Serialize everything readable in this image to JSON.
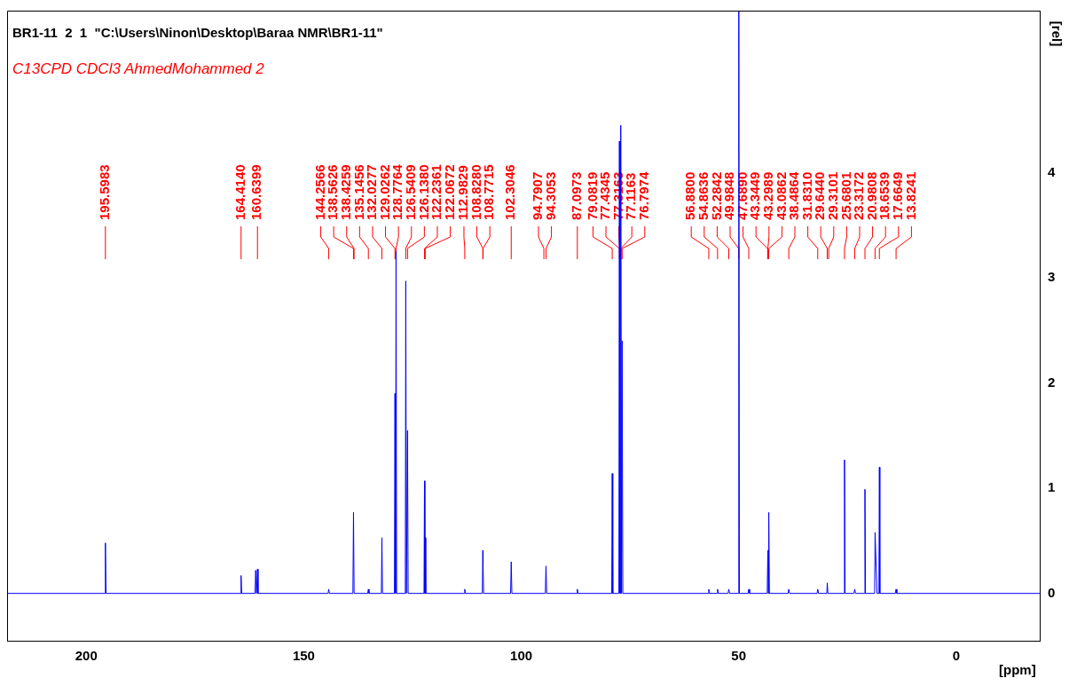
{
  "chart_data": {
    "type": "line",
    "title": "BR1-11  2  1  \"C:\\Users\\Ninon\\Desktop\\Baraa NMR\\BR1-11\"",
    "subtitle": "C13CPD CDCl3 AhmedMohammed 2",
    "xlabel": "[ppm]",
    "ylabel": "[rel]",
    "xlim": [
      218.2,
      -19.2
    ],
    "xticks": [
      200,
      150,
      100,
      50,
      0
    ],
    "ylim": [
      -0.45,
      5.54
    ],
    "yticks": [
      0,
      1,
      2,
      3,
      4
    ],
    "x": [
      218.2,
      195.75,
      195.6,
      195.45,
      164.55,
      164.41,
      164.27,
      161.2,
      161.05,
      160.85,
      160.64,
      160.5,
      144.4,
      144.2566,
      144.1,
      138.7,
      138.56,
      138.42,
      135.3,
      135.1456,
      135.0,
      132.15,
      132.03,
      131.9,
      129.15,
      129.03,
      128.9,
      128.78,
      128.65,
      126.65,
      126.54,
      126.4,
      126.14,
      126.0,
      122.35,
      122.24,
      122.15,
      122.07,
      121.95,
      113.15,
      112.9829,
      112.8,
      108.95,
      108.83,
      108.77,
      108.65,
      102.45,
      102.3,
      102.15,
      94.45,
      94.31,
      94.15,
      87.25,
      87.0973,
      86.95,
      79.2,
      79.08,
      78.95,
      77.55,
      77.43,
      77.37,
      77.32,
      77.22,
      77.12,
      76.95,
      76.8,
      76.65,
      57.05,
      56.88,
      56.7,
      55.0,
      54.8636,
      54.7,
      52.45,
      52.2842,
      52.1,
      50.1,
      49.98,
      49.85,
      47.85,
      47.689,
      47.5,
      43.45,
      43.3,
      43.2,
      43.09,
      42.95,
      38.65,
      38.4864,
      38.3,
      32.0,
      31.831,
      31.65,
      29.75,
      29.64,
      29.5,
      25.8,
      25.68,
      25.55,
      23.5,
      23.3172,
      23.15,
      21.1,
      20.98,
      20.85,
      18.75,
      18.65,
      18.2,
      17.77,
      17.66,
      17.55,
      14.0,
      13.8241,
      13.65,
      -19.2
    ],
    "series": [
      {
        "color": "#0000ff",
        "values": [
          0,
          0,
          0.48,
          0,
          0,
          0.17,
          0,
          0,
          0.22,
          0,
          0.23,
          0,
          0,
          0.04,
          0,
          0,
          0.77,
          0,
          0,
          0.04,
          0,
          0,
          0.53,
          0,
          0,
          1.9,
          0,
          3.25,
          0,
          0,
          2.97,
          0,
          1.55,
          0,
          0,
          1.07,
          0,
          0.53,
          0,
          0,
          0.04,
          0,
          0,
          0.41,
          0.28,
          0,
          0,
          0.3,
          0,
          0,
          0.26,
          0,
          0,
          0.04,
          0,
          0,
          1.14,
          0,
          0,
          4.3,
          0,
          2.9,
          0,
          4.45,
          0,
          2.4,
          0,
          0,
          0.04,
          0,
          0,
          0.04,
          0,
          0,
          0.04,
          0,
          0,
          5.54,
          0,
          0,
          0.04,
          0,
          0,
          0.41,
          0,
          0.77,
          0,
          0,
          0.04,
          0,
          0,
          0.04,
          0,
          0,
          0.1,
          0,
          0,
          1.27,
          0,
          0,
          0.04,
          0,
          0,
          0.99,
          0,
          0,
          0.58,
          0,
          0,
          1.2,
          0,
          0,
          0.04,
          0,
          0
        ]
      }
    ],
    "annotations": [
      {
        "text": "195.5983",
        "x": 195.5983
      },
      {
        "text": "164.4140",
        "x": 164.414
      },
      {
        "text": "160.6399",
        "x": 160.6399
      },
      {
        "text": "144.2566",
        "x": 144.2566
      },
      {
        "text": "138.5626",
        "x": 138.5626
      },
      {
        "text": "138.4259",
        "x": 138.4259
      },
      {
        "text": "135.1456",
        "x": 135.1456
      },
      {
        "text": "132.0277",
        "x": 132.0277
      },
      {
        "text": "129.0262",
        "x": 129.0262
      },
      {
        "text": "128.7764",
        "x": 128.7764
      },
      {
        "text": "126.5409",
        "x": 126.5409
      },
      {
        "text": "126.1380",
        "x": 126.138
      },
      {
        "text": "122.2361",
        "x": 122.2361
      },
      {
        "text": "122.0672",
        "x": 122.0672
      },
      {
        "text": "112.9829",
        "x": 112.9829
      },
      {
        "text": "108.8280",
        "x": 108.828
      },
      {
        "text": "108.7715",
        "x": 108.7715
      },
      {
        "text": "102.3046",
        "x": 102.3046
      },
      {
        "text": "94.7907",
        "x": 94.7907
      },
      {
        "text": "94.3053",
        "x": 94.3053
      },
      {
        "text": "87.0973",
        "x": 87.0973
      },
      {
        "text": "79.0819",
        "x": 79.0819
      },
      {
        "text": "77.4345",
        "x": 77.4345
      },
      {
        "text": "77.3163",
        "x": 77.3163
      },
      {
        "text": "77.1163",
        "x": 77.1163
      },
      {
        "text": "76.7974",
        "x": 76.7974
      },
      {
        "text": "56.8800",
        "x": 56.88
      },
      {
        "text": "54.8636",
        "x": 54.8636
      },
      {
        "text": "52.2842",
        "x": 52.2842
      },
      {
        "text": "49.9848",
        "x": 49.9848
      },
      {
        "text": "47.6890",
        "x": 47.689
      },
      {
        "text": "43.3449",
        "x": 43.3449
      },
      {
        "text": "43.2989",
        "x": 43.2989
      },
      {
        "text": "43.0862",
        "x": 43.0862
      },
      {
        "text": "38.4864",
        "x": 38.4864
      },
      {
        "text": "31.8310",
        "x": 31.831
      },
      {
        "text": "29.6440",
        "x": 29.644
      },
      {
        "text": "29.3101",
        "x": 29.3101
      },
      {
        "text": "25.6801",
        "x": 25.6801
      },
      {
        "text": "23.3172",
        "x": 23.3172
      },
      {
        "text": "20.9808",
        "x": 20.9808
      },
      {
        "text": "18.6539",
        "x": 18.6539
      },
      {
        "text": "17.6649",
        "x": 17.6649
      },
      {
        "text": "13.8241",
        "x": 13.8241
      }
    ]
  }
}
